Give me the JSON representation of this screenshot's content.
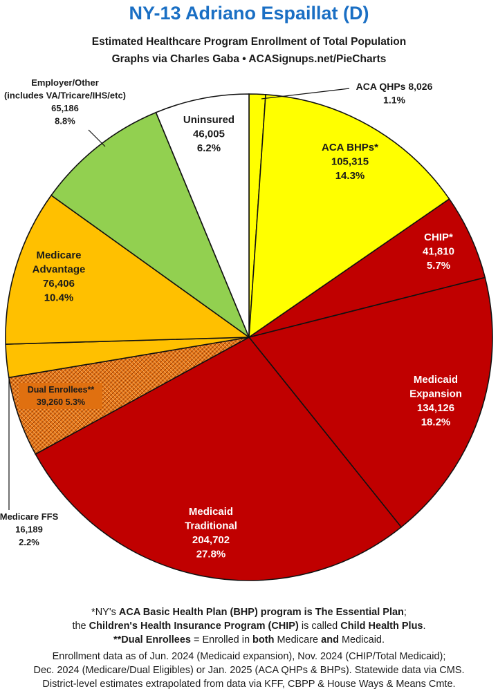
{
  "header": {
    "title": "NY-13 Adriano Espaillat (D)",
    "subtitle_line1": "Estimated Healthcare Program Enrollment of Total Population",
    "subtitle_line2": "Graphs via Charles Gaba  •  ACASignups.net/PieCharts"
  },
  "chart_data": {
    "type": "pie",
    "title": "NY-13 Adriano Espaillat (D)",
    "subtitle": "Estimated Healthcare Program Enrollment of Total Population",
    "slices": [
      {
        "label": "ACA QHPs",
        "value": 8026,
        "percent": "1.1%",
        "color": "#ffff00",
        "text_color": "#1a1a1a",
        "lines": [
          "ACA QHPs 8,026",
          "1.1%"
        ]
      },
      {
        "label": "ACA BHPs*",
        "value": 105315,
        "percent": "14.3%",
        "color": "#ffff00",
        "text_color": "#1a1a1a",
        "lines": [
          "ACA BHPs*",
          "105,315",
          "14.3%"
        ]
      },
      {
        "label": "CHIP*",
        "value": 41810,
        "percent": "5.7%",
        "color": "#c00000",
        "text_color": "#ffffff",
        "lines": [
          "CHIP*",
          "41,810",
          "5.7%"
        ]
      },
      {
        "label": "Medicaid Expansion",
        "value": 134126,
        "percent": "18.2%",
        "color": "#c00000",
        "text_color": "#ffffff",
        "lines": [
          "Medicaid",
          "Expansion",
          "134,126",
          "18.2%"
        ]
      },
      {
        "label": "Medicaid Traditional",
        "value": 204702,
        "percent": "27.8%",
        "color": "#c00000",
        "text_color": "#ffffff",
        "lines": [
          "Medicaid",
          "Traditional",
          "204,702",
          "27.8%"
        ]
      },
      {
        "label": "Dual Enrollees**",
        "value": 39260,
        "percent": "5.3%",
        "color": "#e07010",
        "text_color": "#1a1a1a",
        "pattern": true,
        "lines": [
          "Dual Enrollees**",
          "39,260 5.3%"
        ]
      },
      {
        "label": "Medicare FFS",
        "value": 16189,
        "percent": "2.2%",
        "color": "#ffc000",
        "text_color": "#1a1a1a",
        "lines": [
          "Medicare FFS",
          "16,189",
          "2.2%"
        ]
      },
      {
        "label": "Medicare Advantage",
        "value": 76406,
        "percent": "10.4%",
        "color": "#ffc000",
        "text_color": "#1a1a1a",
        "lines": [
          "Medicare",
          "Advantage",
          "76,406",
          "10.4%"
        ]
      },
      {
        "label": "Employer/Other",
        "value": 65186,
        "percent": "8.8%",
        "color": "#92d050",
        "text_color": "#1a1a1a",
        "lines": [
          "Employer/Other",
          "(includes VA/Tricare/IHS/etc)",
          "65,186",
          "8.8%"
        ]
      },
      {
        "label": "Uninsured",
        "value": 46005,
        "percent": "6.2%",
        "color": "#ffffff",
        "text_color": "#1a1a1a",
        "lines": [
          "Uninsured",
          "46,005",
          "6.2%"
        ]
      }
    ]
  },
  "footnotes": {
    "line1_pre": "*NY's ",
    "line1_bold": "ACA Basic Health Plan (BHP) program is The Essential Plan",
    "line1_post": ";",
    "line2_pre": "the ",
    "line2_bold1": "Children's Health Insurance Program (CHIP)",
    "line2_mid": " is called ",
    "line2_bold2": "Child Health Plus",
    "line2_post": ".",
    "line3_bold": "**Dual Enrollees",
    "line3_a": " = Enrolled in ",
    "line3_both": "both",
    "line3_b": " Medicare ",
    "line3_and": "and",
    "line3_c": " Medicaid."
  },
  "sources": {
    "line1": "Enrollment data as of Jun. 2024 (Medicaid expansion), Nov. 2024 (CHIP/Total Medicaid);",
    "line2": "Dec. 2024 (Medicare/Dual Eligibles) or Jan. 2025 (ACA QHPs & BHPs). Statewide data via CMS.",
    "line3": "District-level estimates extrapolated from data via KFF, CBPP & House Ways & Means Cmte."
  }
}
